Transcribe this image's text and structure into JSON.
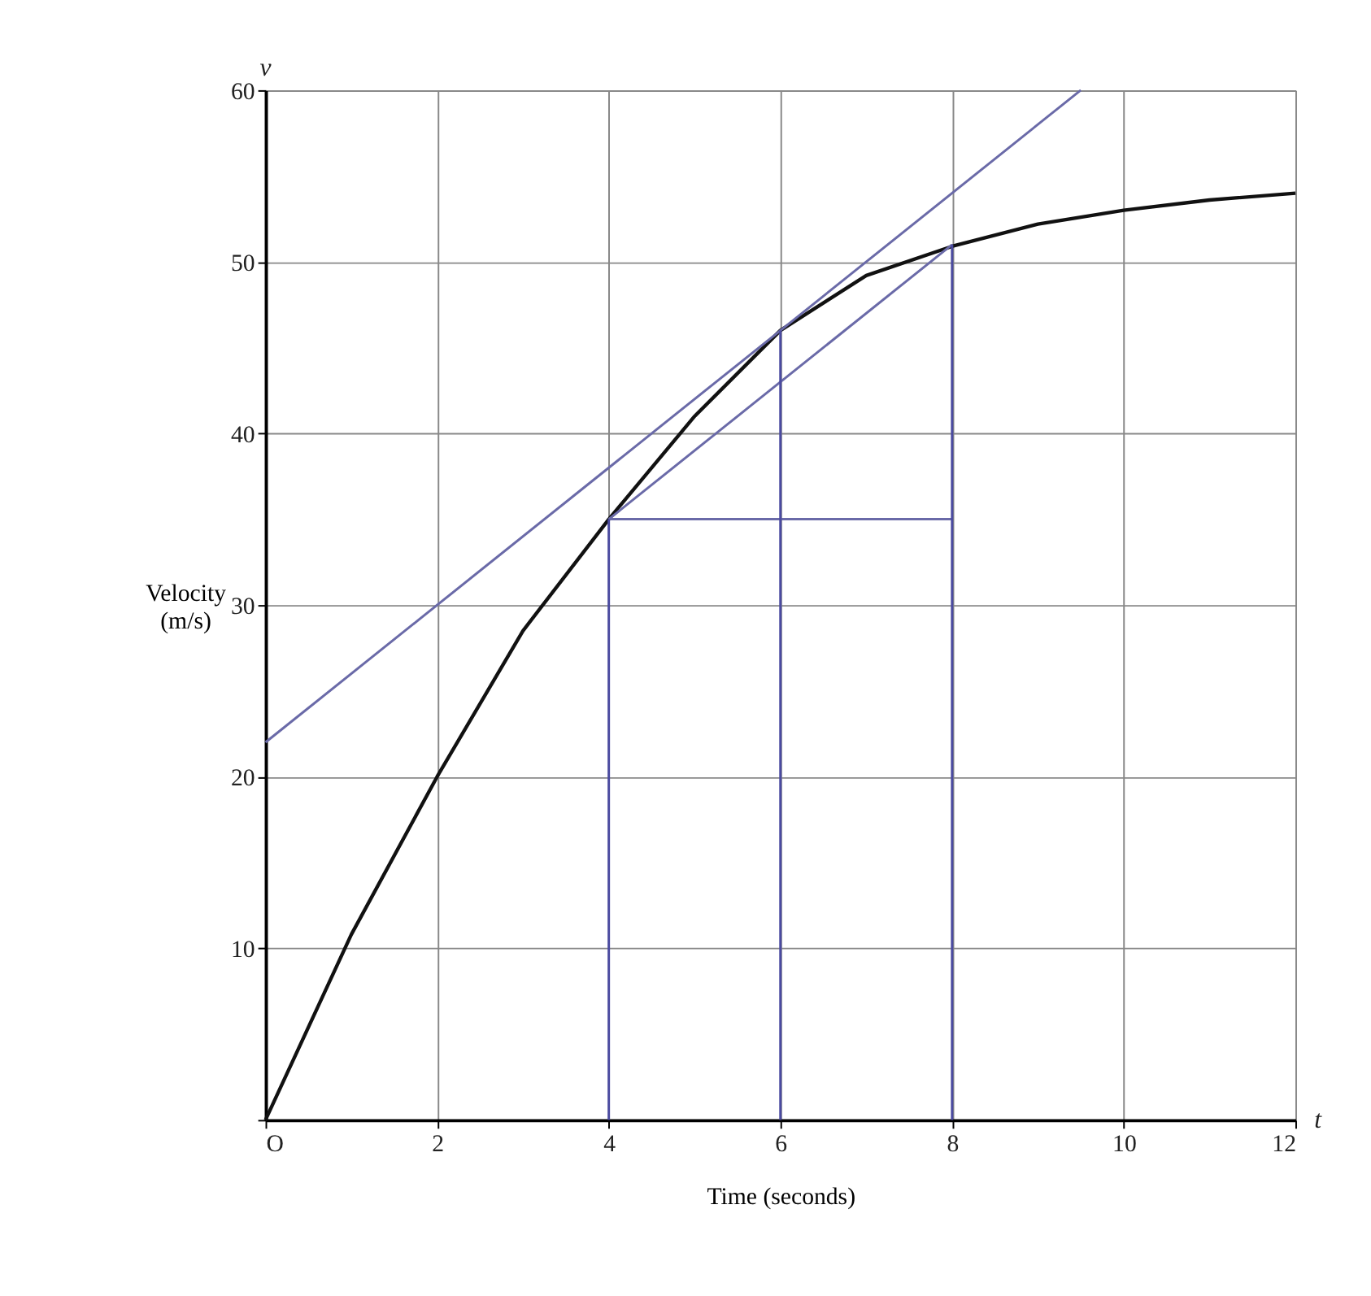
{
  "chart_data": {
    "type": "line",
    "xlabel": "Time (seconds)",
    "ylabel": "Velocity (m/s)",
    "xlim": [
      0,
      12
    ],
    "ylim": [
      0,
      60
    ],
    "xticks": [
      {
        "value": 0,
        "label": "O"
      },
      2,
      4,
      6,
      8,
      10,
      12
    ],
    "yticks": [
      {
        "value": 0,
        "label": null
      },
      10,
      20,
      30,
      40,
      50,
      60
    ],
    "grid": true,
    "legend": false,
    "marker": "none",
    "line_style": "solid",
    "annotations": [
      "v",
      "t"
    ],
    "series": [
      {
        "color": "#111111",
        "x": [
          0,
          1,
          2,
          3,
          4,
          5,
          6,
          7,
          8,
          9,
          10,
          11,
          12
        ],
        "values": [
          0,
          10.8,
          20,
          28.5,
          35,
          41,
          46,
          49.2,
          50.9,
          52.2,
          53,
          53.6,
          54
        ]
      },
      {
        "color": "#6a6aa8",
        "x": [
          0,
          9.5
        ],
        "values": [
          22,
          60
        ]
      },
      {
        "color": "#6a6aa8",
        "x": [
          4,
          8
        ],
        "values": [
          35,
          51
        ]
      },
      {
        "color": "#6a6aa8",
        "x": [
          4,
          8
        ],
        "values": [
          35,
          35
        ]
      },
      {
        "color": "#4a4aa0",
        "x": [
          4,
          4
        ],
        "values": [
          0,
          35
        ]
      },
      {
        "color": "#4a4aa0",
        "x": [
          6,
          6
        ],
        "values": [
          0,
          46
        ]
      },
      {
        "color": "#4a4aa0",
        "x": [
          8,
          8
        ],
        "values": [
          0,
          51
        ]
      }
    ]
  }
}
